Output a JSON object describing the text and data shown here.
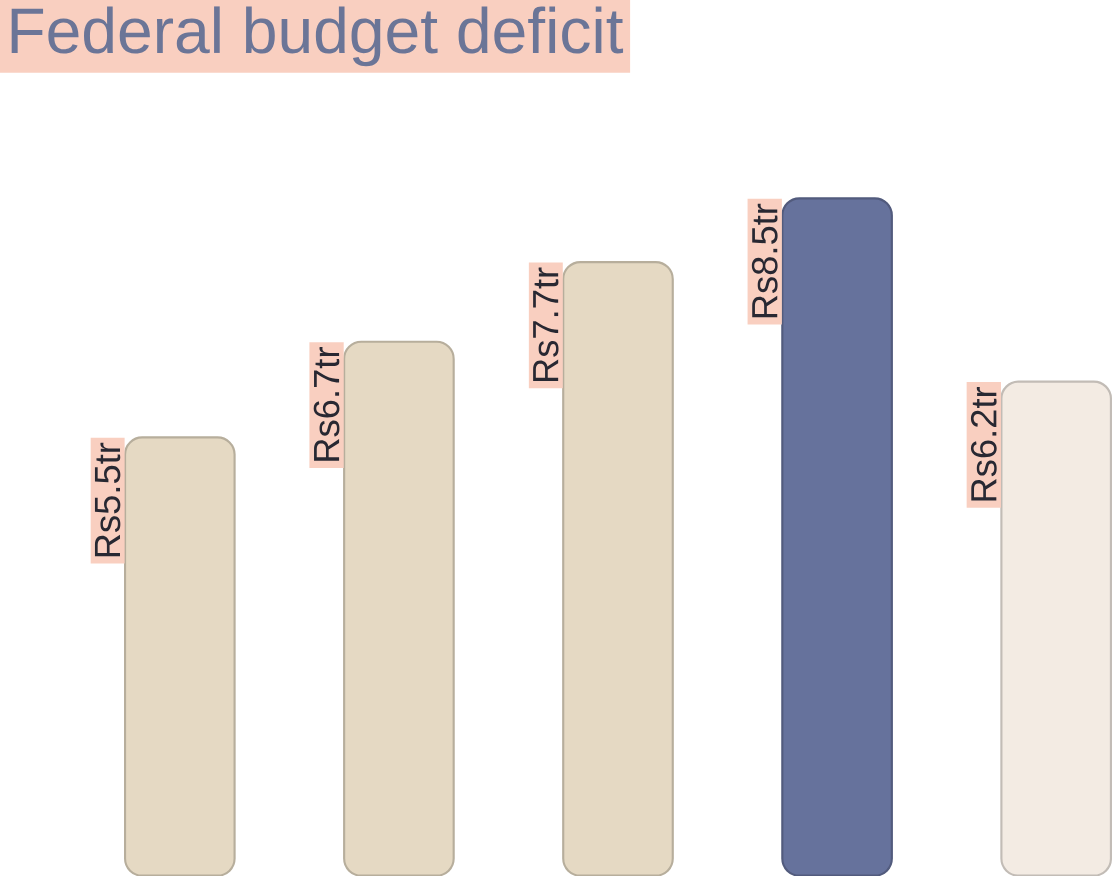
{
  "chart_data": {
    "type": "bar",
    "title": "Federal budget deficit",
    "categories": [
      null,
      null,
      null,
      null,
      null
    ],
    "values": [
      5.5,
      6.7,
      7.7,
      8.5,
      6.2
    ],
    "value_labels": [
      "Rs5.5tr",
      "Rs6.7tr",
      "Rs7.7tr",
      "Rs8.5tr",
      "Rs6.2tr"
    ],
    "colors": [
      "#e5d9c3",
      "#e5d9c3",
      "#e5d9c3",
      "#66729c",
      "#f3ebe3"
    ]
  }
}
